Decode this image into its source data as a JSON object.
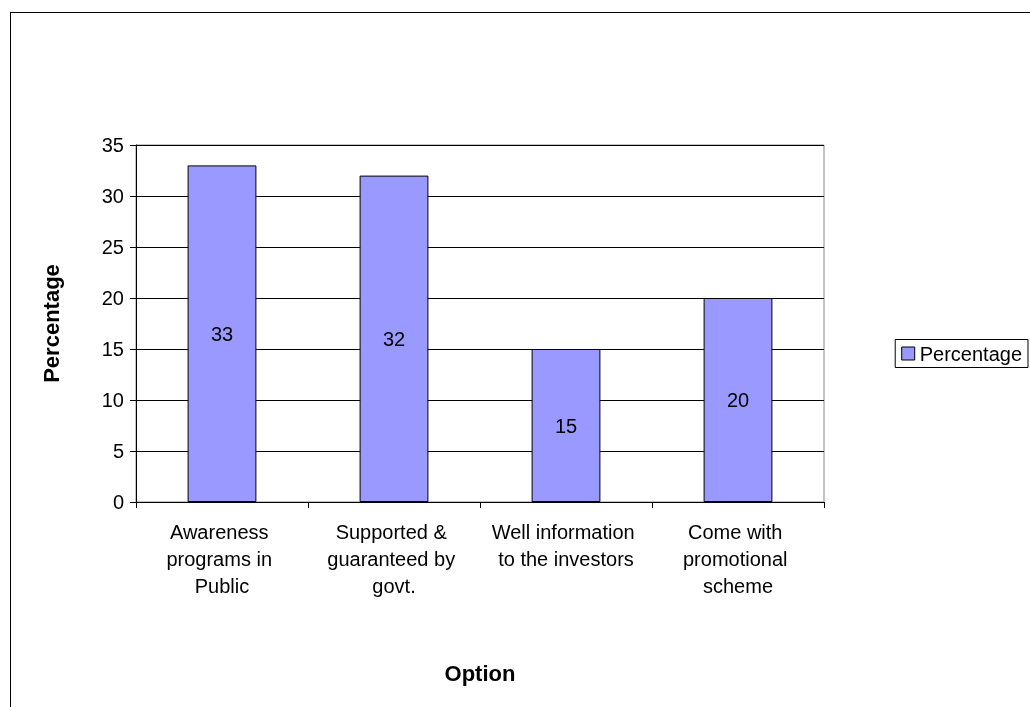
{
  "chart_data": {
    "type": "bar",
    "xlabel": "Option",
    "ylabel": "Percentage",
    "categories": [
      "Awareness programs in Public",
      "Supported & guaranteed by govt.",
      "Well information to the investors",
      "Come with promotional scheme"
    ],
    "series": [
      {
        "name": "Percentage",
        "color": "#9999ff",
        "values": [
          33,
          32,
          15,
          20
        ]
      }
    ],
    "ylim": [
      0,
      35
    ],
    "yticks": [
      0,
      5,
      10,
      15,
      20,
      25,
      30,
      35
    ],
    "grid": "y",
    "legend": "right",
    "data_labels": true
  }
}
